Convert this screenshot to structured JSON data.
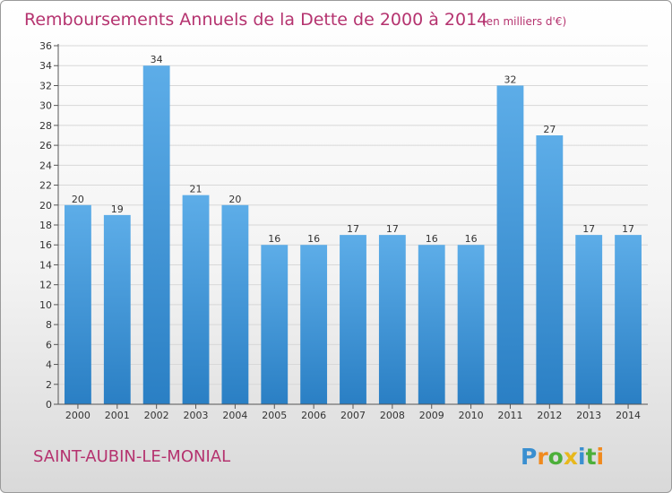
{
  "chart_data": {
    "type": "bar",
    "title": "Remboursements Annuels de la Dette de 2000 à 2014",
    "subtitle": "(en milliers d'€)",
    "categories": [
      "2000",
      "2001",
      "2002",
      "2003",
      "2004",
      "2005",
      "2006",
      "2007",
      "2008",
      "2009",
      "2010",
      "2011",
      "2012",
      "2013",
      "2014"
    ],
    "values": [
      20,
      19,
      34,
      21,
      20,
      16,
      16,
      17,
      17,
      16,
      16,
      32,
      27,
      17,
      17
    ],
    "ylim": [
      0,
      36
    ],
    "yticks": [
      0,
      2,
      4,
      6,
      8,
      10,
      12,
      14,
      16,
      18,
      20,
      22,
      24,
      26,
      28,
      30,
      32,
      34,
      36
    ],
    "grid": true,
    "bar_color_top": "#5dade8",
    "bar_color_bottom": "#2a7fc4"
  },
  "commune": "SAINT-AUBIN-LE-MONIAL",
  "logo": {
    "letters": [
      "P",
      "r",
      "o",
      "x",
      "i",
      "t",
      "i"
    ],
    "colors": [
      "#3a8fd0",
      "#f08a1e",
      "#4caf3a",
      "#e8b81c",
      "#3a8fd0",
      "#4caf3a",
      "#f08a1e"
    ]
  },
  "colors": {
    "accent": "#b5336f"
  }
}
